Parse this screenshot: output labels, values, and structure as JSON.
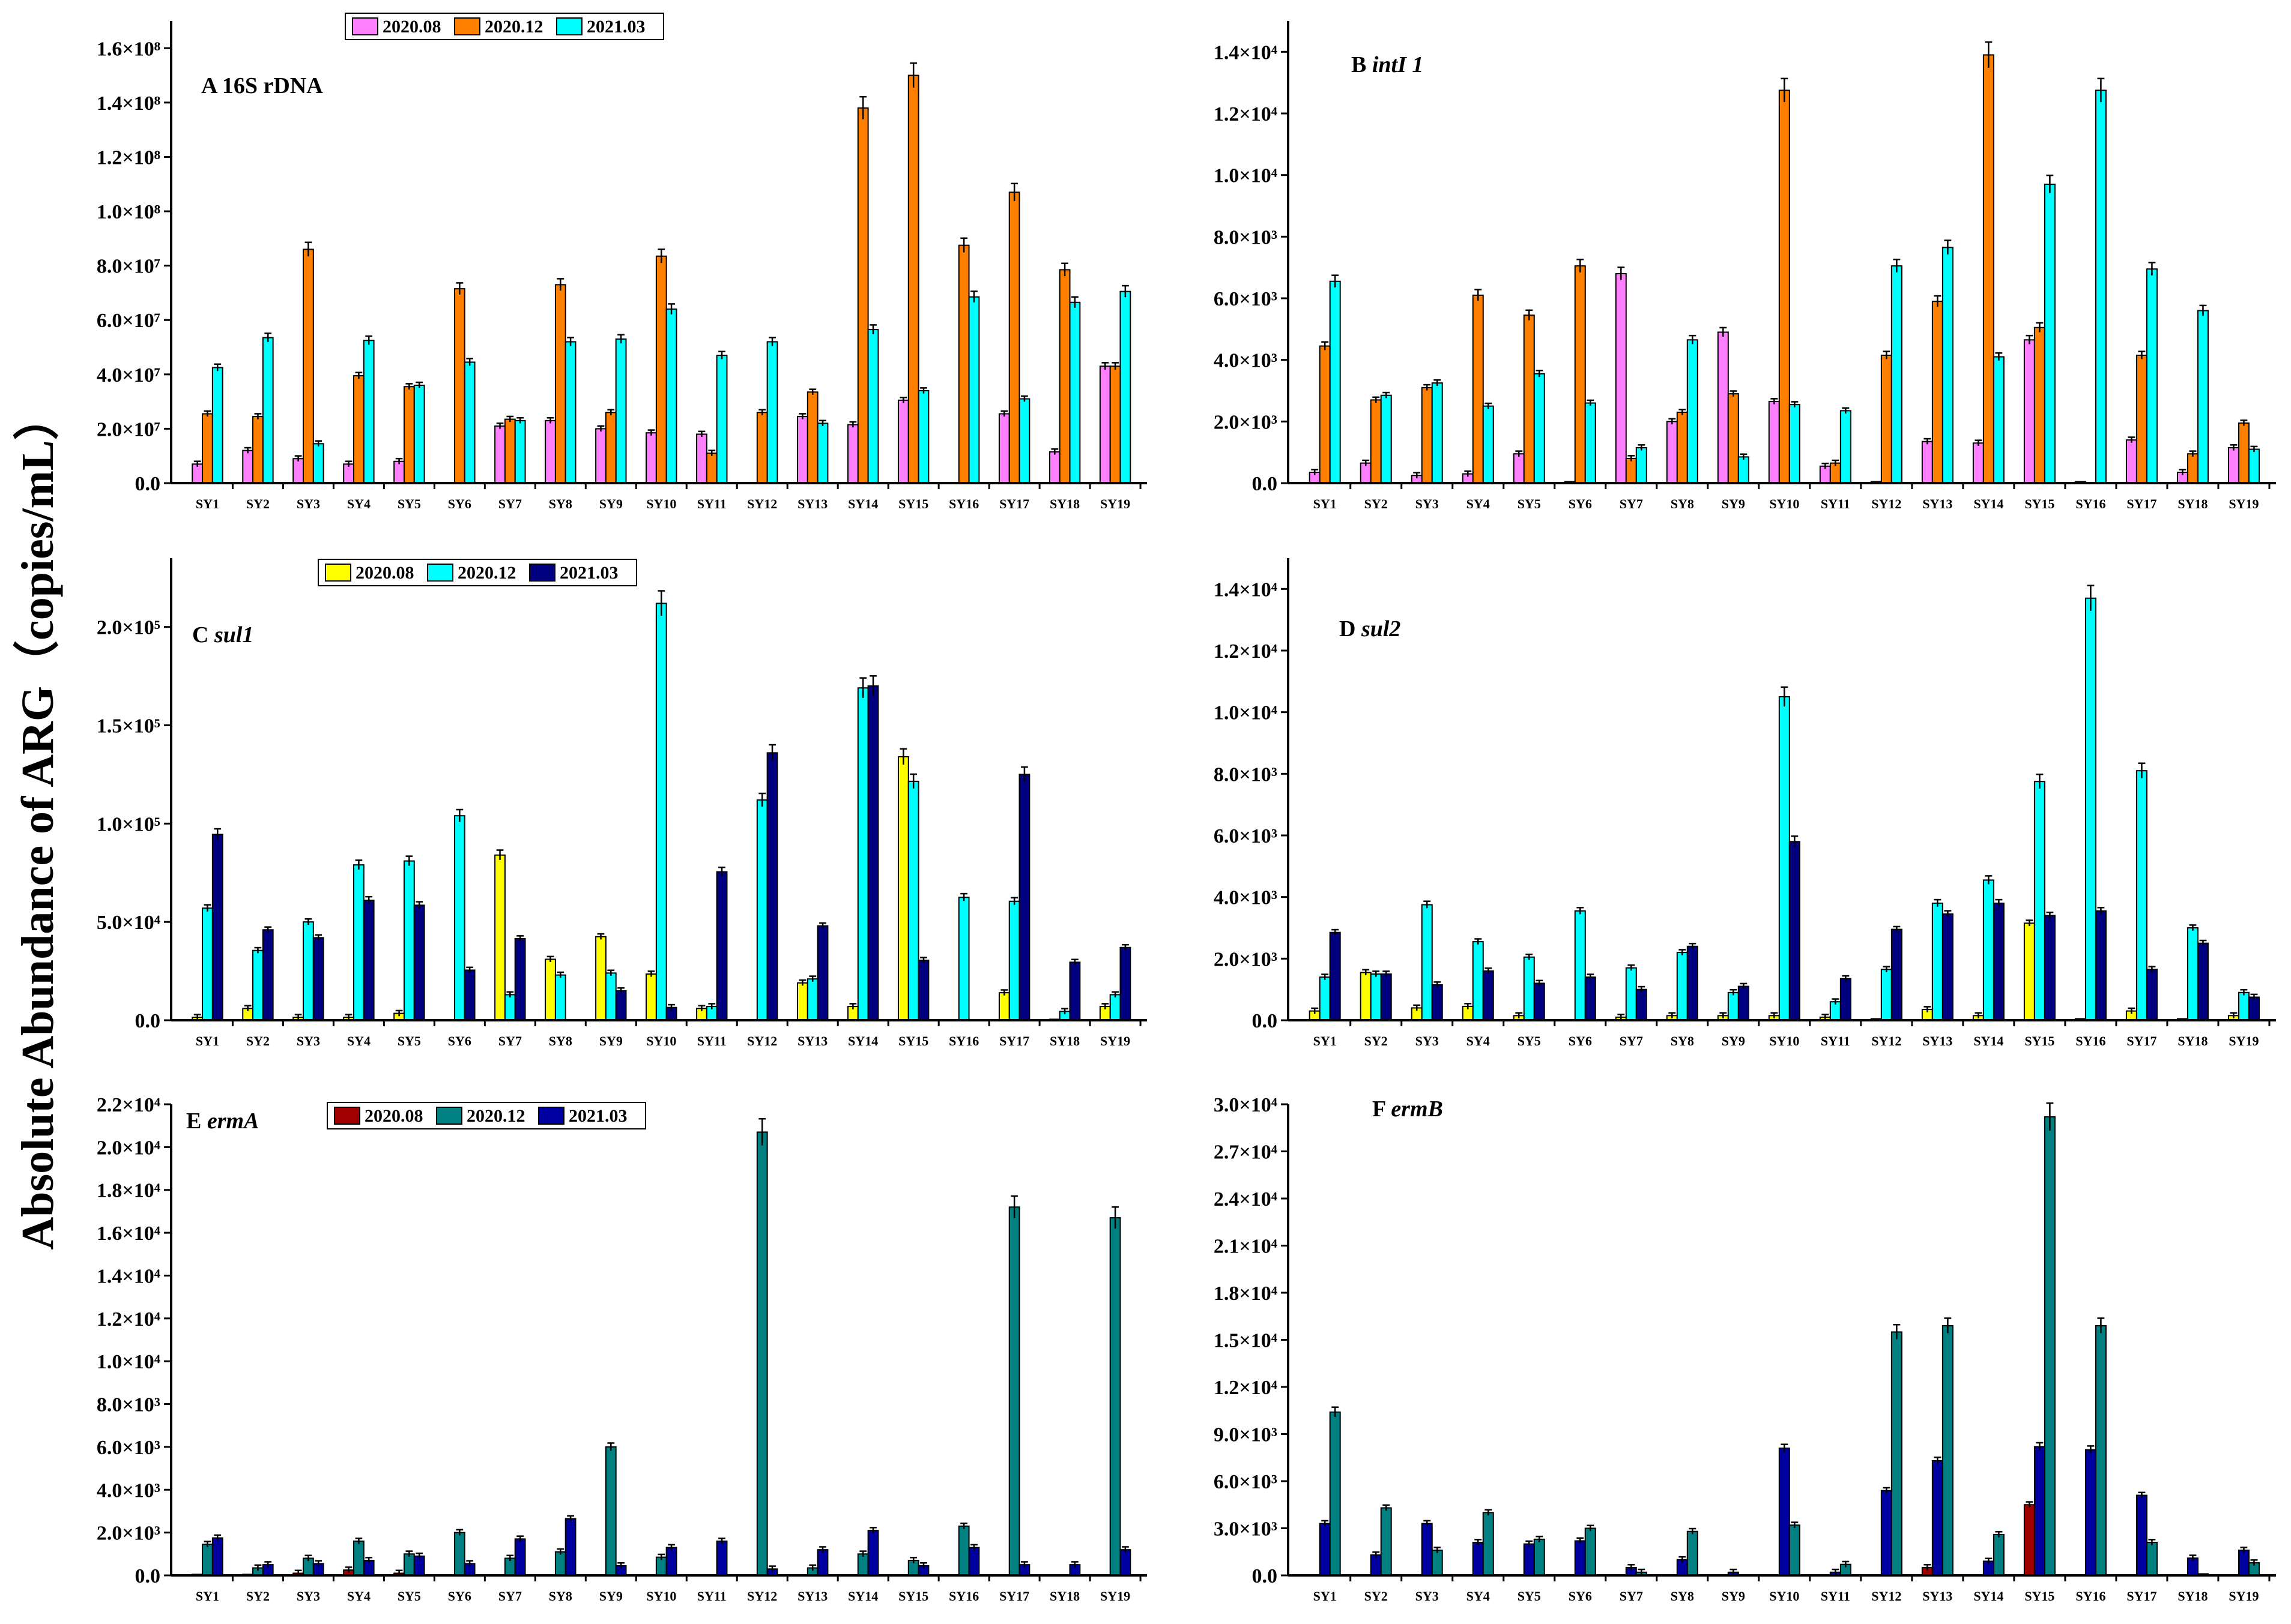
{
  "figure": {
    "y_axis_title": "Absolute Abundance of ARG（copies/mL）"
  },
  "chart_data": [
    {
      "id": "A",
      "type": "bar",
      "title": "A 16S rDNA",
      "title_plain": "A 16S rDNA",
      "title_italic": "",
      "categories": [
        "SY1",
        "SY2",
        "SY3",
        "SY4",
        "SY5",
        "SY6",
        "SY7",
        "SY8",
        "SY9",
        "SY10",
        "SY11",
        "SY12",
        "SY13",
        "SY14",
        "SY15",
        "SY16",
        "SY17",
        "SY18",
        "SY19"
      ],
      "ylim": [
        0,
        170000000
      ],
      "yticks": [
        0,
        20000000,
        40000000,
        60000000,
        80000000,
        100000000,
        120000000,
        140000000,
        160000000
      ],
      "ytick_labels": [
        "0.0",
        "2.0×10⁷",
        "4.0×10⁷",
        "6.0×10⁷",
        "8.0×10⁷",
        "1.0×10⁸",
        "1.2×10⁸",
        "1.4×10⁸",
        "1.6×10⁸"
      ],
      "legend": true,
      "series": [
        {
          "name": "2020.08",
          "color": "#ff80ff",
          "values": [
            7000000,
            12000000,
            9000000,
            7000000,
            8000000,
            0,
            21000000,
            23000000,
            20000000,
            18500000,
            18000000,
            0,
            24500000,
            21500000,
            30500000,
            0,
            25500000,
            11500000,
            43000000
          ]
        },
        {
          "name": "2020.12",
          "color": "#ff8000",
          "values": [
            25500000,
            24500000,
            86000000,
            39500000,
            35500000,
            71500000,
            23500000,
            73000000,
            26000000,
            83500000,
            11000000,
            26000000,
            33500000,
            138000000,
            150000000,
            87500000,
            107000000,
            78500000,
            43000000
          ]
        },
        {
          "name": "2021.03",
          "color": "#00ffff",
          "values": [
            42500000,
            53500000,
            14500000,
            52500000,
            36000000,
            44500000,
            23000000,
            52000000,
            53000000,
            64000000,
            47000000,
            52000000,
            22000000,
            56500000,
            34000000,
            68500000,
            31000000,
            66500000,
            70500000
          ]
        }
      ]
    },
    {
      "id": "B",
      "type": "bar",
      "title": "B intI 1",
      "title_plain": "B ",
      "title_italic": "intI 1",
      "categories": [
        "SY1",
        "SY2",
        "SY3",
        "SY4",
        "SY5",
        "SY6",
        "SY7",
        "SY8",
        "SY9",
        "SY10",
        "SY11",
        "SY12",
        "SY13",
        "SY14",
        "SY15",
        "SY16",
        "SY17",
        "SY18",
        "SY19"
      ],
      "ylim": [
        0,
        15000
      ],
      "yticks": [
        0,
        2000,
        4000,
        6000,
        8000,
        10000,
        12000,
        14000
      ],
      "ytick_labels": [
        "0.0",
        "2.0×10³",
        "4.0×10³",
        "6.0×10³",
        "8.0×10³",
        "1.0×10⁴",
        "1.2×10⁴",
        "1.4×10⁴"
      ],
      "legend": false,
      "series": [
        {
          "name": "2020.08",
          "color": "#ff80ff",
          "values": [
            350,
            650,
            250,
            300,
            950,
            50,
            6800,
            2000,
            4900,
            2650,
            550,
            50,
            1350,
            1300,
            4650,
            50,
            1400,
            350,
            1150
          ]
        },
        {
          "name": "2020.12",
          "color": "#ff8000",
          "values": [
            4450,
            2700,
            3100,
            6100,
            5450,
            7050,
            800,
            2300,
            2900,
            12750,
            650,
            4150,
            5900,
            13900,
            5050,
            0,
            4150,
            950,
            1950
          ]
        },
        {
          "name": "2021.03",
          "color": "#00ffff",
          "values": [
            6550,
            2850,
            3250,
            2500,
            3550,
            2600,
            1150,
            4650,
            850,
            2550,
            2350,
            7050,
            7650,
            4100,
            9700,
            12750,
            6950,
            5600,
            1100
          ]
        }
      ]
    },
    {
      "id": "C",
      "type": "bar",
      "title": "C sul1",
      "title_plain": "C ",
      "title_italic": "sul1",
      "categories": [
        "SY1",
        "SY2",
        "SY3",
        "SY4",
        "SY5",
        "SY6",
        "SY7",
        "SY8",
        "SY9",
        "SY10",
        "SY11",
        "SY12",
        "SY13",
        "SY14",
        "SY15",
        "SY16",
        "SY17",
        "SY18",
        "SY19"
      ],
      "ylim": [
        0,
        235000
      ],
      "yticks": [
        0,
        50000,
        100000,
        150000,
        200000
      ],
      "ytick_labels": [
        "0.0",
        "5.0×10⁴",
        "1.0×10⁵",
        "1.5×10⁵",
        "2.0×10⁵"
      ],
      "legend": true,
      "series": [
        {
          "name": "2020.08",
          "color": "#ffff00",
          "values": [
            1500,
            6000,
            1500,
            1500,
            3500,
            0,
            84000,
            31000,
            42500,
            23500,
            6000,
            0,
            19000,
            7000,
            134000,
            0,
            14000,
            500,
            7000
          ]
        },
        {
          "name": "2020.12",
          "color": "#00ffff",
          "values": [
            57000,
            35500,
            50000,
            79000,
            81000,
            104000,
            13000,
            23000,
            24000,
            212000,
            7000,
            112000,
            21000,
            169000,
            121500,
            62500,
            60500,
            4500,
            13000
          ]
        },
        {
          "name": "2021.03",
          "color": "#000080",
          "values": [
            94500,
            46000,
            42000,
            61000,
            58500,
            25500,
            41500,
            0,
            15000,
            6500,
            75500,
            136000,
            48000,
            170000,
            30500,
            0,
            125000,
            29500,
            37000
          ]
        }
      ]
    },
    {
      "id": "D",
      "type": "bar",
      "title": "D sul2",
      "title_plain": "D ",
      "title_italic": "sul2",
      "categories": [
        "SY1",
        "SY2",
        "SY3",
        "SY4",
        "SY5",
        "SY6",
        "SY7",
        "SY8",
        "SY9",
        "SY10",
        "SY11",
        "SY12",
        "SY13",
        "SY14",
        "SY15",
        "SY16",
        "SY17",
        "SY18",
        "SY19"
      ],
      "ylim": [
        0,
        15000
      ],
      "yticks": [
        0,
        2000,
        4000,
        6000,
        8000,
        10000,
        12000,
        14000
      ],
      "ytick_labels": [
        "0.0",
        "2.0×10³",
        "4.0×10³",
        "6.0×10³",
        "8.0×10³",
        "1.0×10⁴",
        "1.2×10⁴",
        "1.4×10⁴"
      ],
      "legend": false,
      "series": [
        {
          "name": "2020.08",
          "color": "#ffff00",
          "values": [
            300,
            1550,
            400,
            450,
            150,
            0,
            100,
            150,
            150,
            150,
            100,
            50,
            350,
            150,
            3150,
            50,
            300,
            50,
            150
          ]
        },
        {
          "name": "2020.12",
          "color": "#00ffff",
          "values": [
            1400,
            1500,
            3750,
            2550,
            2050,
            3550,
            1700,
            2200,
            900,
            10500,
            600,
            1650,
            3800,
            4550,
            7750,
            13700,
            8100,
            3000,
            900
          ]
        },
        {
          "name": "2021.03",
          "color": "#000080",
          "values": [
            2850,
            1500,
            1150,
            1600,
            1200,
            1400,
            1000,
            2400,
            1100,
            5800,
            1350,
            2950,
            3450,
            3800,
            3400,
            3550,
            1650,
            2500,
            750
          ]
        }
      ]
    },
    {
      "id": "E",
      "type": "bar",
      "title": "E ermA",
      "title_plain": "E ",
      "title_italic": "ermA",
      "categories": [
        "SY1",
        "SY2",
        "SY3",
        "SY4",
        "SY5",
        "SY6",
        "SY7",
        "SY8",
        "SY9",
        "SY10",
        "SY11",
        "SY12",
        "SY13",
        "SY14",
        "SY15",
        "SY16",
        "SY17",
        "SY18",
        "SY19"
      ],
      "ylim": [
        0,
        22000
      ],
      "yticks": [
        0,
        2000,
        4000,
        6000,
        8000,
        10000,
        12000,
        14000,
        16000,
        18000,
        20000,
        22000
      ],
      "ytick_labels": [
        "0.0",
        "2.0×10³",
        "4.0×10³",
        "6.0×10³",
        "8.0×10³",
        "1.0×10⁴",
        "1.2×10⁴",
        "1.4×10⁴",
        "1.6×10⁴",
        "1.8×10⁴",
        "2.0×10⁴",
        "2.2×10⁴"
      ],
      "legend": true,
      "series": [
        {
          "name": "2020.08",
          "color": "#a00000",
          "values": [
            50,
            50,
            100,
            250,
            100,
            0,
            0,
            0,
            0,
            0,
            0,
            0,
            0,
            0,
            0,
            0,
            0,
            0,
            0
          ]
        },
        {
          "name": "2020.12",
          "color": "#008080",
          "values": [
            1450,
            350,
            800,
            1600,
            1000,
            2000,
            800,
            1100,
            6000,
            850,
            0,
            20700,
            350,
            1000,
            700,
            2300,
            17200,
            0,
            16700
          ]
        },
        {
          "name": "2021.03",
          "color": "#0000a0",
          "values": [
            1750,
            500,
            550,
            700,
            900,
            550,
            1700,
            2650,
            450,
            1300,
            1600,
            300,
            1200,
            2100,
            450,
            1300,
            500,
            500,
            1200
          ]
        }
      ]
    },
    {
      "id": "F",
      "type": "bar",
      "title": "F ermB",
      "title_plain": "F ",
      "title_italic": "ermB",
      "categories": [
        "SY1",
        "SY2",
        "SY3",
        "SY4",
        "SY5",
        "SY6",
        "SY7",
        "SY8",
        "SY9",
        "SY10",
        "SY11",
        "SY12",
        "SY13",
        "SY14",
        "SY15",
        "SY16",
        "SY17",
        "SY18",
        "SY19"
      ],
      "ylim": [
        0,
        30000
      ],
      "yticks": [
        0,
        3000,
        6000,
        9000,
        12000,
        15000,
        18000,
        21000,
        24000,
        27000,
        30000
      ],
      "ytick_labels": [
        "0.0",
        "3.0×10³",
        "6.0×10³",
        "9.0×10³",
        "1.2×10⁴",
        "1.5×10⁴",
        "1.8×10⁴",
        "2.1×10⁴",
        "2.4×10⁴",
        "2.7×10⁴",
        "3.0×10⁴"
      ],
      "legend": false,
      "series": [
        {
          "name": "2020.08",
          "color": "#a00000",
          "values": [
            0,
            0,
            0,
            0,
            0,
            0,
            0,
            0,
            0,
            0,
            0,
            0,
            500,
            0,
            4500,
            0,
            0,
            0,
            0
          ]
        },
        {
          "name": "2021.03",
          "color": "#0000a0",
          "values": [
            3300,
            1300,
            3300,
            2100,
            2000,
            2200,
            500,
            1000,
            200,
            8100,
            200,
            5400,
            7300,
            900,
            8200,
            8000,
            5100,
            1100,
            1600
          ]
        },
        {
          "name": "2020.12",
          "color": "#008080",
          "values": [
            10400,
            4300,
            1600,
            4000,
            2300,
            3000,
            200,
            2800,
            0,
            3200,
            700,
            15500,
            15900,
            2600,
            29200,
            15900,
            2100,
            100,
            800
          ]
        }
      ]
    }
  ]
}
